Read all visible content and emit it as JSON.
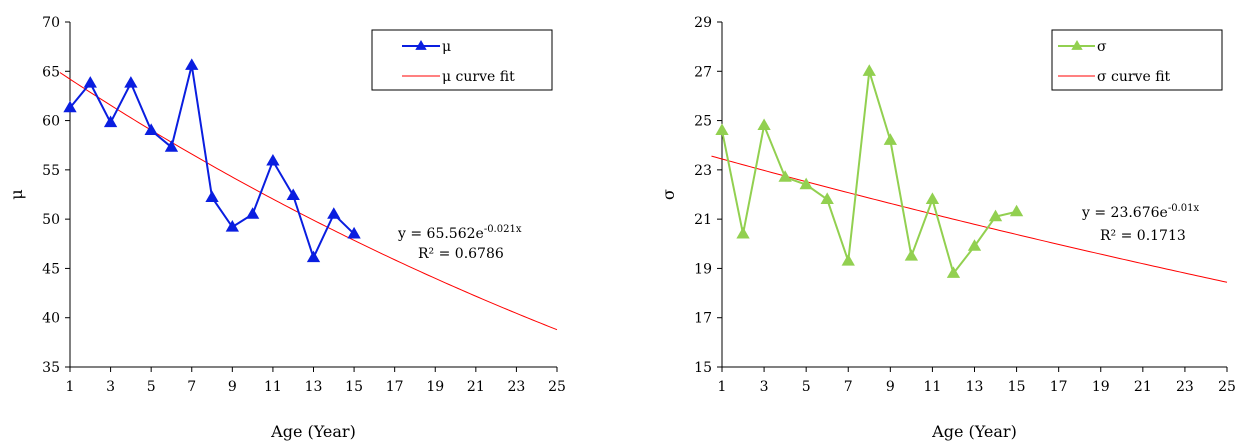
{
  "chart_data": [
    {
      "type": "line",
      "xlabel": "Age (Year)",
      "ylabel": "μ",
      "xlim": [
        1,
        25
      ],
      "ylim": [
        35,
        70
      ],
      "xticks": [
        1,
        3,
        5,
        7,
        9,
        11,
        13,
        15,
        17,
        19,
        21,
        23,
        25
      ],
      "yticks": [
        35,
        40,
        45,
        50,
        55,
        60,
        65,
        70
      ],
      "grid": false,
      "legend_position": "top-right",
      "series": [
        {
          "name": "μ",
          "color": "#0a1ee0",
          "marker": "triangle",
          "x": [
            1,
            2,
            3,
            4,
            5,
            6,
            7,
            8,
            9,
            10,
            11,
            12,
            13,
            14,
            15
          ],
          "y": [
            61.3,
            63.8,
            59.8,
            63.8,
            59.0,
            57.3,
            65.6,
            52.2,
            49.2,
            50.5,
            55.9,
            52.4,
            46.1,
            50.5,
            48.5
          ]
        },
        {
          "name": "μ curve fit",
          "color": "#ff0000",
          "fit": {
            "a": 65.562,
            "b": -0.021,
            "x": [
              0.5,
              25
            ]
          }
        }
      ],
      "annotation": {
        "eq_base": "y = 65.562e",
        "eq_exp": "-0.021x",
        "r2": "R² = 0.6786"
      }
    },
    {
      "type": "line",
      "xlabel": "Age (Year)",
      "ylabel": "σ",
      "xlim": [
        1,
        25
      ],
      "ylim": [
        15,
        29
      ],
      "xticks": [
        1,
        3,
        5,
        7,
        9,
        11,
        13,
        15,
        17,
        19,
        21,
        23,
        25
      ],
      "yticks": [
        15,
        17,
        19,
        21,
        23,
        25,
        27,
        29
      ],
      "grid": false,
      "legend_position": "top-right",
      "series": [
        {
          "name": "σ",
          "color": "#92d050",
          "marker": "triangle",
          "x": [
            1,
            2,
            3,
            4,
            5,
            6,
            7,
            8,
            9,
            10,
            11,
            12,
            13,
            14,
            15
          ],
          "y": [
            24.6,
            20.4,
            24.8,
            22.7,
            22.4,
            21.8,
            19.3,
            27.0,
            24.2,
            19.5,
            21.8,
            18.8,
            19.9,
            21.1,
            21.3
          ]
        },
        {
          "name": "σ curve fit",
          "color": "#ff0000",
          "fit": {
            "a": 23.676,
            "b": -0.01,
            "x": [
              0.5,
              25
            ]
          }
        }
      ],
      "annotation": {
        "eq_base": "y = 23.676e",
        "eq_exp": "-0.01x",
        "r2": "R² = 0.1713"
      }
    }
  ]
}
